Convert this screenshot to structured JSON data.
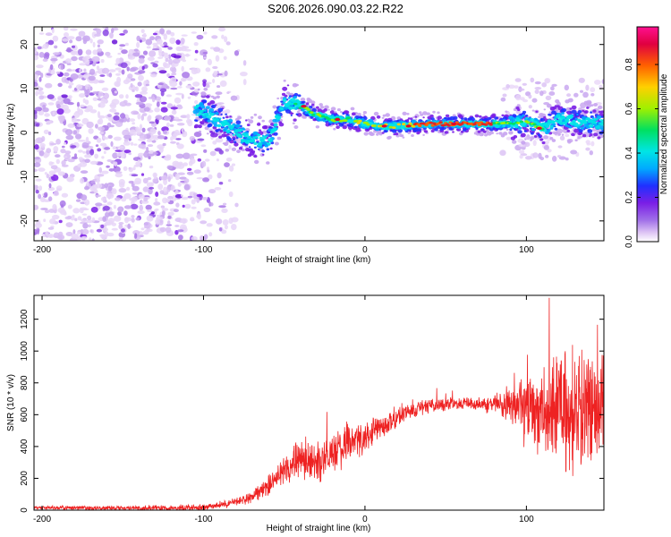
{
  "page": {
    "title": "S206.2026.090.03.22.R22"
  },
  "chart_data": [
    {
      "type": "heatmap",
      "title": "S206.2026.090.03.22.R22",
      "xlabel": "Height of straight line (km)",
      "ylabel": "Frequency (Hz)",
      "xlim": [
        -205,
        148
      ],
      "ylim": [
        -24.5,
        24
      ],
      "xticks": [
        -200,
        -100,
        0,
        100
      ],
      "yticks": [
        -20,
        -10,
        0,
        10,
        20
      ],
      "colorbar": {
        "label": "Normalized spectral amplitude",
        "range": [
          0.0,
          0.97
        ],
        "ticks": [
          0.0,
          0.2,
          0.4,
          0.6,
          0.8
        ],
        "colormap": [
          "#ffffff",
          "#e0c8f5",
          "#a070e8",
          "#7a1ee6",
          "#2030ff",
          "#00aaff",
          "#00e5e5",
          "#00e060",
          "#a0f000",
          "#ffd000",
          "#ff6000",
          "#e00040",
          "#ff1090"
        ]
      },
      "ridge": {
        "description_points_x": [
          -100,
          -75,
          -60,
          -50,
          -40,
          -30,
          -20,
          -10,
          0,
          10,
          20,
          40,
          60,
          80,
          90,
          100,
          110,
          120,
          148
        ],
        "description_points_y": [
          5,
          -1,
          -2,
          7,
          6,
          4,
          3,
          3,
          2,
          1.5,
          1.5,
          2,
          2,
          2,
          2,
          2.5,
          1,
          3,
          2
        ]
      },
      "colors": {
        "grid": "#000000",
        "axis": "#000000"
      }
    },
    {
      "type": "line",
      "title": "",
      "xlabel": "Height of straight line (km)",
      "ylabel": "SNR (10 * v/v)",
      "xlim": [
        -205,
        148
      ],
      "ylim": [
        0,
        1350
      ],
      "xticks": [
        -200,
        -100,
        0,
        100
      ],
      "yticks": [
        0,
        200,
        400,
        600,
        800,
        1000,
        1200
      ],
      "series": [
        {
          "color": "#ee2222",
          "trend_x": [
            -205,
            -100,
            -85,
            -70,
            -60,
            -50,
            -40,
            -30,
            -20,
            -10,
            0,
            10,
            20,
            30,
            40,
            60,
            80,
            90,
            100,
            110,
            120,
            130,
            148
          ],
          "trend_y": [
            15,
            15,
            40,
            80,
            150,
            250,
            320,
            300,
            350,
            420,
            460,
            520,
            590,
            630,
            660,
            670,
            670,
            660,
            650,
            640,
            630,
            620,
            620
          ],
          "noise_x": [
            -205,
            -100,
            -80,
            -60,
            -40,
            -20,
            0,
            20,
            60,
            80,
            90,
            100,
            110,
            120,
            148
          ],
          "noise_amp": [
            10,
            20,
            25,
            60,
            130,
            130,
            100,
            60,
            40,
            60,
            120,
            250,
            320,
            380,
            380
          ]
        }
      ]
    }
  ]
}
